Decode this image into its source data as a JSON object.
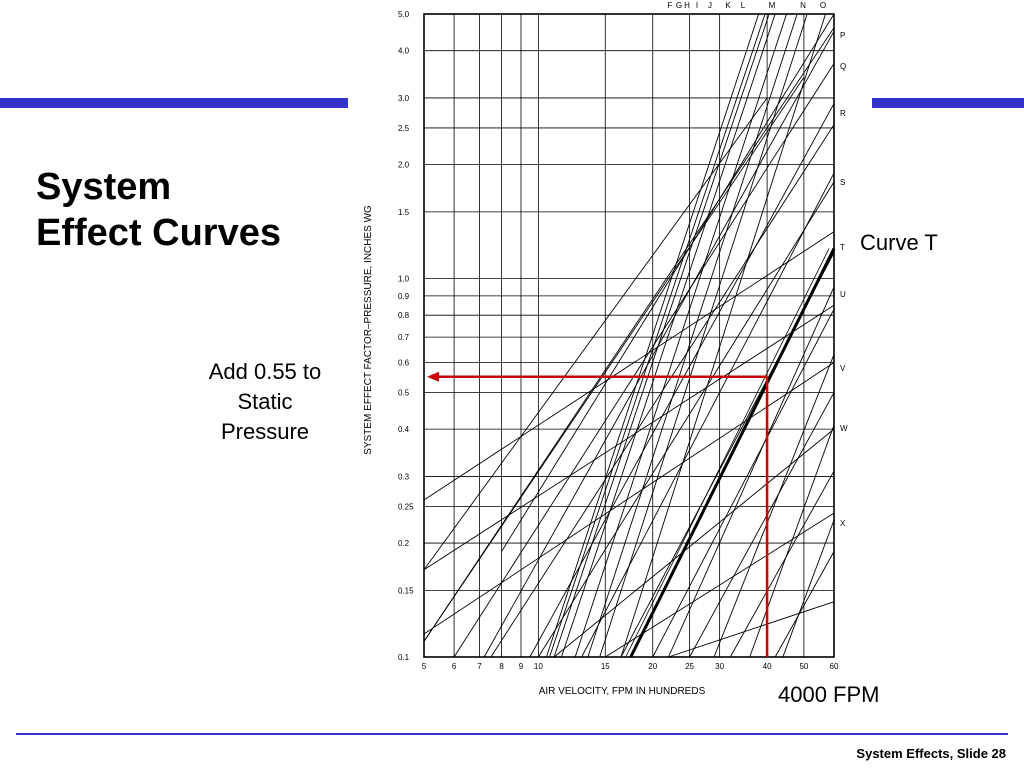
{
  "slide": {
    "title": "System\nEffect Curves",
    "footer": "System Effects, Slide 28",
    "accent_color": "#3333cc",
    "annotation_color": "#cc0000"
  },
  "callouts": {
    "pressure": "Add 0.55 to\nStatic\nPressure",
    "curve": "Curve T",
    "velocity": "4000 FPM"
  },
  "chart_data": {
    "type": "line",
    "title": "",
    "xlabel": "AIR VELOCITY, FPM IN HUNDREDS",
    "ylabel": "SYSTEM EFFECT FACTOR–PRESSURE, INCHES WG",
    "x_scale": "log",
    "y_scale": "log",
    "xlim": [
      5,
      60
    ],
    "ylim": [
      0.1,
      5.0
    ],
    "x_ticks": [
      5,
      6,
      7,
      8,
      9,
      10,
      15,
      20,
      25,
      30,
      40,
      50,
      60
    ],
    "y_ticks": [
      0.1,
      0.15,
      0.2,
      0.25,
      0.3,
      0.4,
      0.5,
      0.6,
      0.7,
      0.8,
      0.9,
      1.0,
      1.5,
      2.0,
      2.5,
      3.0,
      4.0,
      5.0
    ],
    "y_tick_labels": [
      "0.1",
      "0.15",
      "0.2",
      "0.25",
      "0.3",
      "0.4",
      "0.5",
      "0.6",
      "0.7",
      "0.8",
      "0.9",
      "1.0",
      "1.5",
      "2.0",
      "2.5",
      "3.0",
      "4.0",
      "5.0"
    ],
    "grid": true,
    "curves_top": [
      "F",
      "G",
      "H",
      "I",
      "J",
      "K",
      "L",
      "M",
      "N",
      "O"
    ],
    "curves_right": [
      "P",
      "Q",
      "R",
      "S",
      "T",
      "U",
      "V",
      "W",
      "X"
    ],
    "curve_lines": [
      [
        [
          5,
          0.26
        ],
        [
          60,
          1.33
        ]
      ],
      [
        [
          5,
          0.17
        ],
        [
          60,
          0.85
        ]
      ],
      [
        [
          5,
          0.115
        ],
        [
          60,
          0.6
        ]
      ],
      [
        [
          11,
          0.1
        ],
        [
          60,
          0.4
        ]
      ],
      [
        [
          15,
          0.1
        ],
        [
          60,
          0.24
        ]
      ],
      [
        [
          22,
          0.1
        ],
        [
          60,
          0.14
        ]
      ],
      [
        [
          8,
          0.19
        ],
        [
          60,
          5.0
        ]
      ],
      [
        [
          7.2,
          0.1
        ],
        [
          60,
          4.5
        ]
      ],
      [
        [
          9.5,
          0.1
        ],
        [
          60,
          2.9
        ]
      ],
      [
        [
          13,
          0.1
        ],
        [
          60,
          1.9
        ]
      ],
      [
        [
          16.5,
          0.1
        ],
        [
          60,
          1.17
        ]
      ],
      [
        [
          20,
          0.1
        ],
        [
          60,
          0.83
        ]
      ],
      [
        [
          25,
          0.1
        ],
        [
          60,
          0.5
        ]
      ],
      [
        [
          32,
          0.1
        ],
        [
          60,
          0.31
        ]
      ],
      [
        [
          42,
          0.1
        ],
        [
          60,
          0.19
        ]
      ]
    ],
    "pressure_curves": [
      {
        "name": "F",
        "points": [
          [
            10.5,
            0.1
          ],
          [
            38,
            5.0
          ]
        ]
      },
      {
        "name": "G",
        "points": [
          [
            10.7,
            0.1
          ],
          [
            39.5,
            5.0
          ]
        ]
      },
      {
        "name": "H",
        "points": [
          [
            11,
            0.1
          ],
          [
            40.5,
            5.0
          ]
        ]
      },
      {
        "name": "I",
        "points": [
          [
            11.5,
            0.1
          ],
          [
            42,
            5.0
          ]
        ]
      },
      {
        "name": "J",
        "points": [
          [
            12.5,
            0.1
          ],
          [
            45,
            5.0
          ]
        ]
      },
      {
        "name": "K",
        "points": [
          [
            13.5,
            0.1
          ],
          [
            48,
            5.0
          ]
        ]
      },
      {
        "name": "L",
        "points": [
          [
            14.5,
            0.1
          ],
          [
            51,
            5.0
          ]
        ]
      },
      {
        "name": "M",
        "points": [
          [
            16.5,
            0.1
          ],
          [
            57,
            5.0
          ]
        ]
      },
      {
        "name": "N",
        "points": [
          [
            5,
            0.17
          ],
          [
            40,
            3.0
          ]
        ]
      },
      {
        "name": "O",
        "points": [
          [
            5,
            0.11
          ],
          [
            50,
            3.4
          ]
        ]
      },
      {
        "name": "P",
        "points": [
          [
            5,
            0.11
          ],
          [
            60,
            4.6
          ]
        ]
      },
      {
        "name": "Q",
        "points": [
          [
            6,
            0.1
          ],
          [
            60,
            3.7
          ]
        ]
      },
      {
        "name": "R",
        "points": [
          [
            7.5,
            0.1
          ],
          [
            60,
            2.55
          ]
        ]
      },
      {
        "name": "S",
        "points": [
          [
            10,
            0.1
          ],
          [
            60,
            1.8
          ]
        ]
      },
      {
        "name": "T",
        "points": [
          [
            17.5,
            0.1
          ],
          [
            60,
            1.2
          ]
        ]
      },
      {
        "name": "U",
        "points": [
          [
            22,
            0.1
          ],
          [
            60,
            0.95
          ]
        ]
      },
      {
        "name": "V",
        "points": [
          [
            29,
            0.1
          ],
          [
            60,
            0.63
          ]
        ]
      },
      {
        "name": "W",
        "points": [
          [
            36,
            0.1
          ],
          [
            60,
            0.41
          ]
        ]
      },
      {
        "name": "X",
        "points": [
          [
            44,
            0.1
          ],
          [
            60,
            0.23
          ]
        ]
      }
    ],
    "highlight": {
      "curve": "T",
      "x": 40,
      "y": 0.55
    }
  }
}
